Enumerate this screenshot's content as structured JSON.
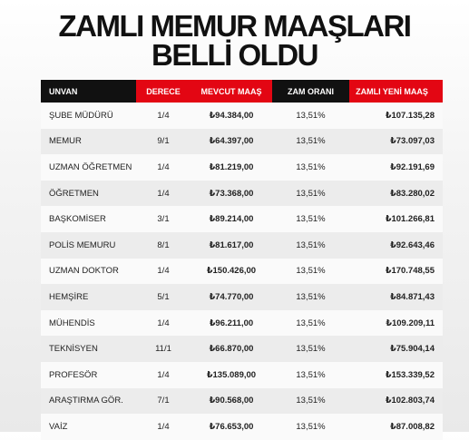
{
  "header": {
    "title_line1": "ZAMLI MEMUR MAAŞLARI",
    "title_line2": "BELLİ OLDU"
  },
  "table": {
    "columns": [
      "UNVAN",
      "DERECE",
      "MEVCUT MAAŞ",
      "ZAM ORANI",
      "ZAMLI YENİ MAAŞ"
    ],
    "rows": [
      [
        "ŞUBE MÜDÜRÜ",
        "1/4",
        "₺94.384,00",
        "13,51%",
        "₺107.135,28"
      ],
      [
        "MEMUR",
        "9/1",
        "₺64.397,00",
        "13,51%",
        "₺73.097,03"
      ],
      [
        "UZMAN ÖĞRETMEN",
        "1/4",
        "₺81.219,00",
        "13,51%",
        "₺92.191,69"
      ],
      [
        "ÖĞRETMEN",
        "1/4",
        "₺73.368,00",
        "13,51%",
        "₺83.280,02"
      ],
      [
        "BAŞKOMİSER",
        "3/1",
        "₺89.214,00",
        "13,51%",
        "₺101.266,81"
      ],
      [
        "POLİS MEMURU",
        "8/1",
        "₺81.617,00",
        "13,51%",
        "₺92.643,46"
      ],
      [
        "UZMAN DOKTOR",
        "1/4",
        "₺150.426,00",
        "13,51%",
        "₺170.748,55"
      ],
      [
        "HEMŞİRE",
        "5/1",
        "₺74.770,00",
        "13,51%",
        "₺84.871,43"
      ],
      [
        "MÜHENDİS",
        "1/4",
        "₺96.211,00",
        "13,51%",
        "₺109.209,11"
      ],
      [
        "TEKNİSYEN",
        "11/1",
        "₺66.870,00",
        "13,51%",
        "₺75.904,14"
      ],
      [
        "PROFESÖR",
        "1/4",
        "₺135.089,00",
        "13,51%",
        "₺153.339,52"
      ],
      [
        "ARAŞTIRMA GÖR.",
        "7/1",
        "₺90.568,00",
        "13,51%",
        "₺102.803,74"
      ],
      [
        "VAİZ",
        "1/4",
        "₺76.653,00",
        "13,51%",
        "₺87.008,82"
      ]
    ]
  }
}
